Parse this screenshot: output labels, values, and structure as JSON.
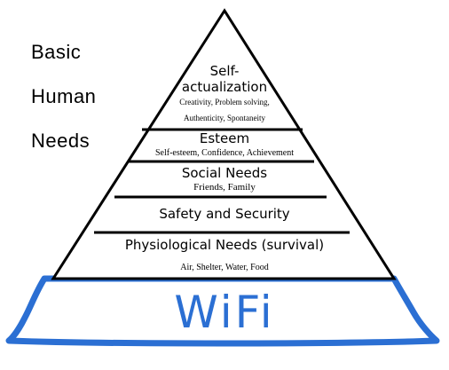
{
  "side_title": [
    "Basic",
    "Human",
    "Needs"
  ],
  "levels": [
    {
      "title_lines": [
        "Self-",
        "actualization"
      ],
      "subtitle_lines": [
        "Creativity, Problem solving,",
        "Authenticity, Spontaneity"
      ]
    },
    {
      "title": "Esteem",
      "subtitle": "Self-esteem, Confidence, Achievement"
    },
    {
      "title": "Social Needs",
      "subtitle": "Friends, Family"
    },
    {
      "title": "Safety and Security"
    },
    {
      "title": "Physiological Needs (survival)",
      "subtitle": "Air, Shelter, Water, Food"
    }
  ],
  "base_label": "WiFi",
  "colors": {
    "outline": "#000000",
    "wifi": "#2b6fd3",
    "background": "#ffffff"
  }
}
